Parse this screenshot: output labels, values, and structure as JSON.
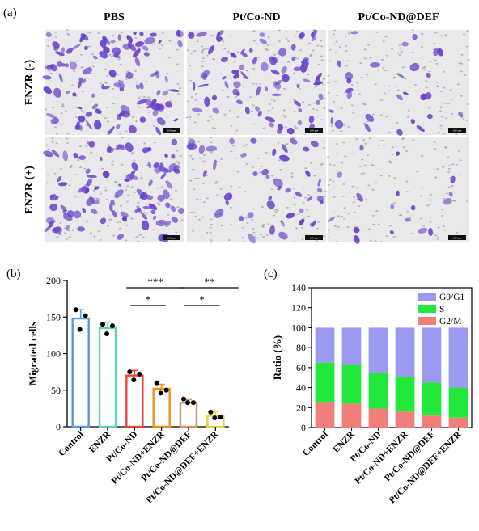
{
  "panels": {
    "a": {
      "letter": "(a)",
      "columns": [
        "PBS",
        "Pt/Co-ND",
        "Pt/Co-ND@DEF"
      ],
      "rows": [
        "ENZR (-)",
        "ENZR (+)"
      ],
      "image_density": [
        [
          0.95,
          0.7,
          0.25
        ],
        [
          0.9,
          0.4,
          0.15
        ]
      ],
      "stain_color": "#6a3fc8",
      "scale_label": "100 μm"
    },
    "b": {
      "letter": "(b)"
    },
    "c": {
      "letter": "(c)"
    }
  },
  "chart_data": [
    {
      "id": "b",
      "type": "bar",
      "categories": [
        "Control",
        "ENZR",
        "Pt/Co-ND",
        "Pt/Co-ND+ENZR",
        "Pt/Co-ND@DEF",
        "Pt/Co-ND@DEF+ENZR"
      ],
      "values": [
        148,
        135,
        70,
        52,
        33,
        15
      ],
      "errors": [
        12,
        8,
        7,
        6,
        4,
        5
      ],
      "points": [
        [
          160,
          152,
          133
        ],
        [
          140,
          138,
          127
        ],
        [
          75,
          72,
          64
        ],
        [
          60,
          50,
          46
        ],
        [
          38,
          33,
          33
        ],
        [
          20,
          13,
          12
        ]
      ],
      "colors": [
        "#5b9bd5",
        "#5fd3b5",
        "#e8443a",
        "#f2921d",
        "#c49c6c",
        "#e3d43a"
      ],
      "ylabel": "Migrated cells",
      "xlabel": "",
      "ylim": [
        0,
        200
      ],
      "yticks": [
        0,
        50,
        100,
        150,
        200
      ],
      "significance": [
        {
          "from": 2,
          "to": 4,
          "label": "***",
          "level": 1
        },
        {
          "from": 4,
          "to": 6,
          "label": "**",
          "level": 1
        },
        {
          "from": 2,
          "to": 3,
          "label": "*",
          "level": 2
        },
        {
          "from": 4,
          "to": 5,
          "label": "*",
          "level": 2
        }
      ],
      "grid": false
    },
    {
      "id": "c",
      "type": "bar",
      "stacked": true,
      "categories": [
        "Control",
        "ENZR",
        "Pt/Co-ND",
        "Pt/Co-ND+ENZR",
        "Pt/Co-ND@DEF",
        "Pt/Co-ND@DEF+ENZR"
      ],
      "series": [
        {
          "name": "G2/M",
          "color": "#f07f7a",
          "values": [
            25,
            24,
            19,
            16,
            12,
            10
          ]
        },
        {
          "name": "S",
          "color": "#22e83a",
          "values": [
            40,
            39,
            36,
            35,
            33,
            30
          ]
        },
        {
          "name": "G0/G1",
          "color": "#9a9af0",
          "values": [
            35,
            37,
            45,
            49,
            55,
            60
          ]
        }
      ],
      "legend_order": [
        "G0/G1",
        "S",
        "G2/M"
      ],
      "legend_position": "top-right",
      "ylabel": "Ratio (%)",
      "xlabel": "",
      "ylim": [
        0,
        140
      ],
      "yticks": [
        0,
        20,
        40,
        60,
        80,
        100,
        120,
        140
      ],
      "grid": false
    }
  ]
}
